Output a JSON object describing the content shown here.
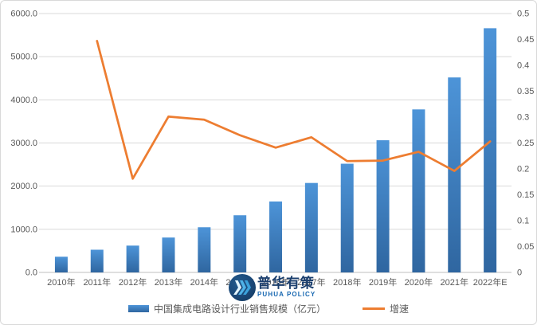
{
  "watermark": {
    "title": "普华有策",
    "subtitle": "PUHUA POLICY"
  },
  "chart_data": {
    "type": "combo",
    "title": "",
    "categories": [
      "2010年",
      "2011年",
      "2012年",
      "2013年",
      "2014年",
      "2015年",
      "2016年",
      "2017年",
      "2018年",
      "2019年",
      "2020年",
      "2021年",
      "2022年E"
    ],
    "series": [
      {
        "name": "中国集成电路设计行业销售规模（亿元）",
        "type": "bar",
        "axis": "left",
        "values": [
          363.9,
          526.4,
          621.7,
          808.8,
          1047.4,
          1325.0,
          1644.3,
          2073.5,
          2519.3,
          3063.5,
          3778.4,
          4519.0,
          5660.0
        ]
      },
      {
        "name": "增速",
        "type": "line",
        "axis": "right",
        "values": [
          null,
          0.447,
          0.181,
          0.301,
          0.295,
          0.265,
          0.241,
          0.261,
          0.215,
          0.216,
          0.233,
          0.196,
          0.253
        ]
      }
    ],
    "left_axis": {
      "min": 0,
      "max": 6000,
      "step": 1000,
      "decimals": 1
    },
    "right_axis": {
      "min": 0,
      "max": 0.5,
      "step": 0.05
    },
    "grid": true,
    "legend_position": "bottom",
    "colors": {
      "bar_top": "#4D94D8",
      "bar_bottom": "#2F66A0",
      "line": "#ED7D31",
      "grid": "#D9D9D9",
      "axis": "#BFBFBF",
      "tick_text": "#595959"
    }
  }
}
